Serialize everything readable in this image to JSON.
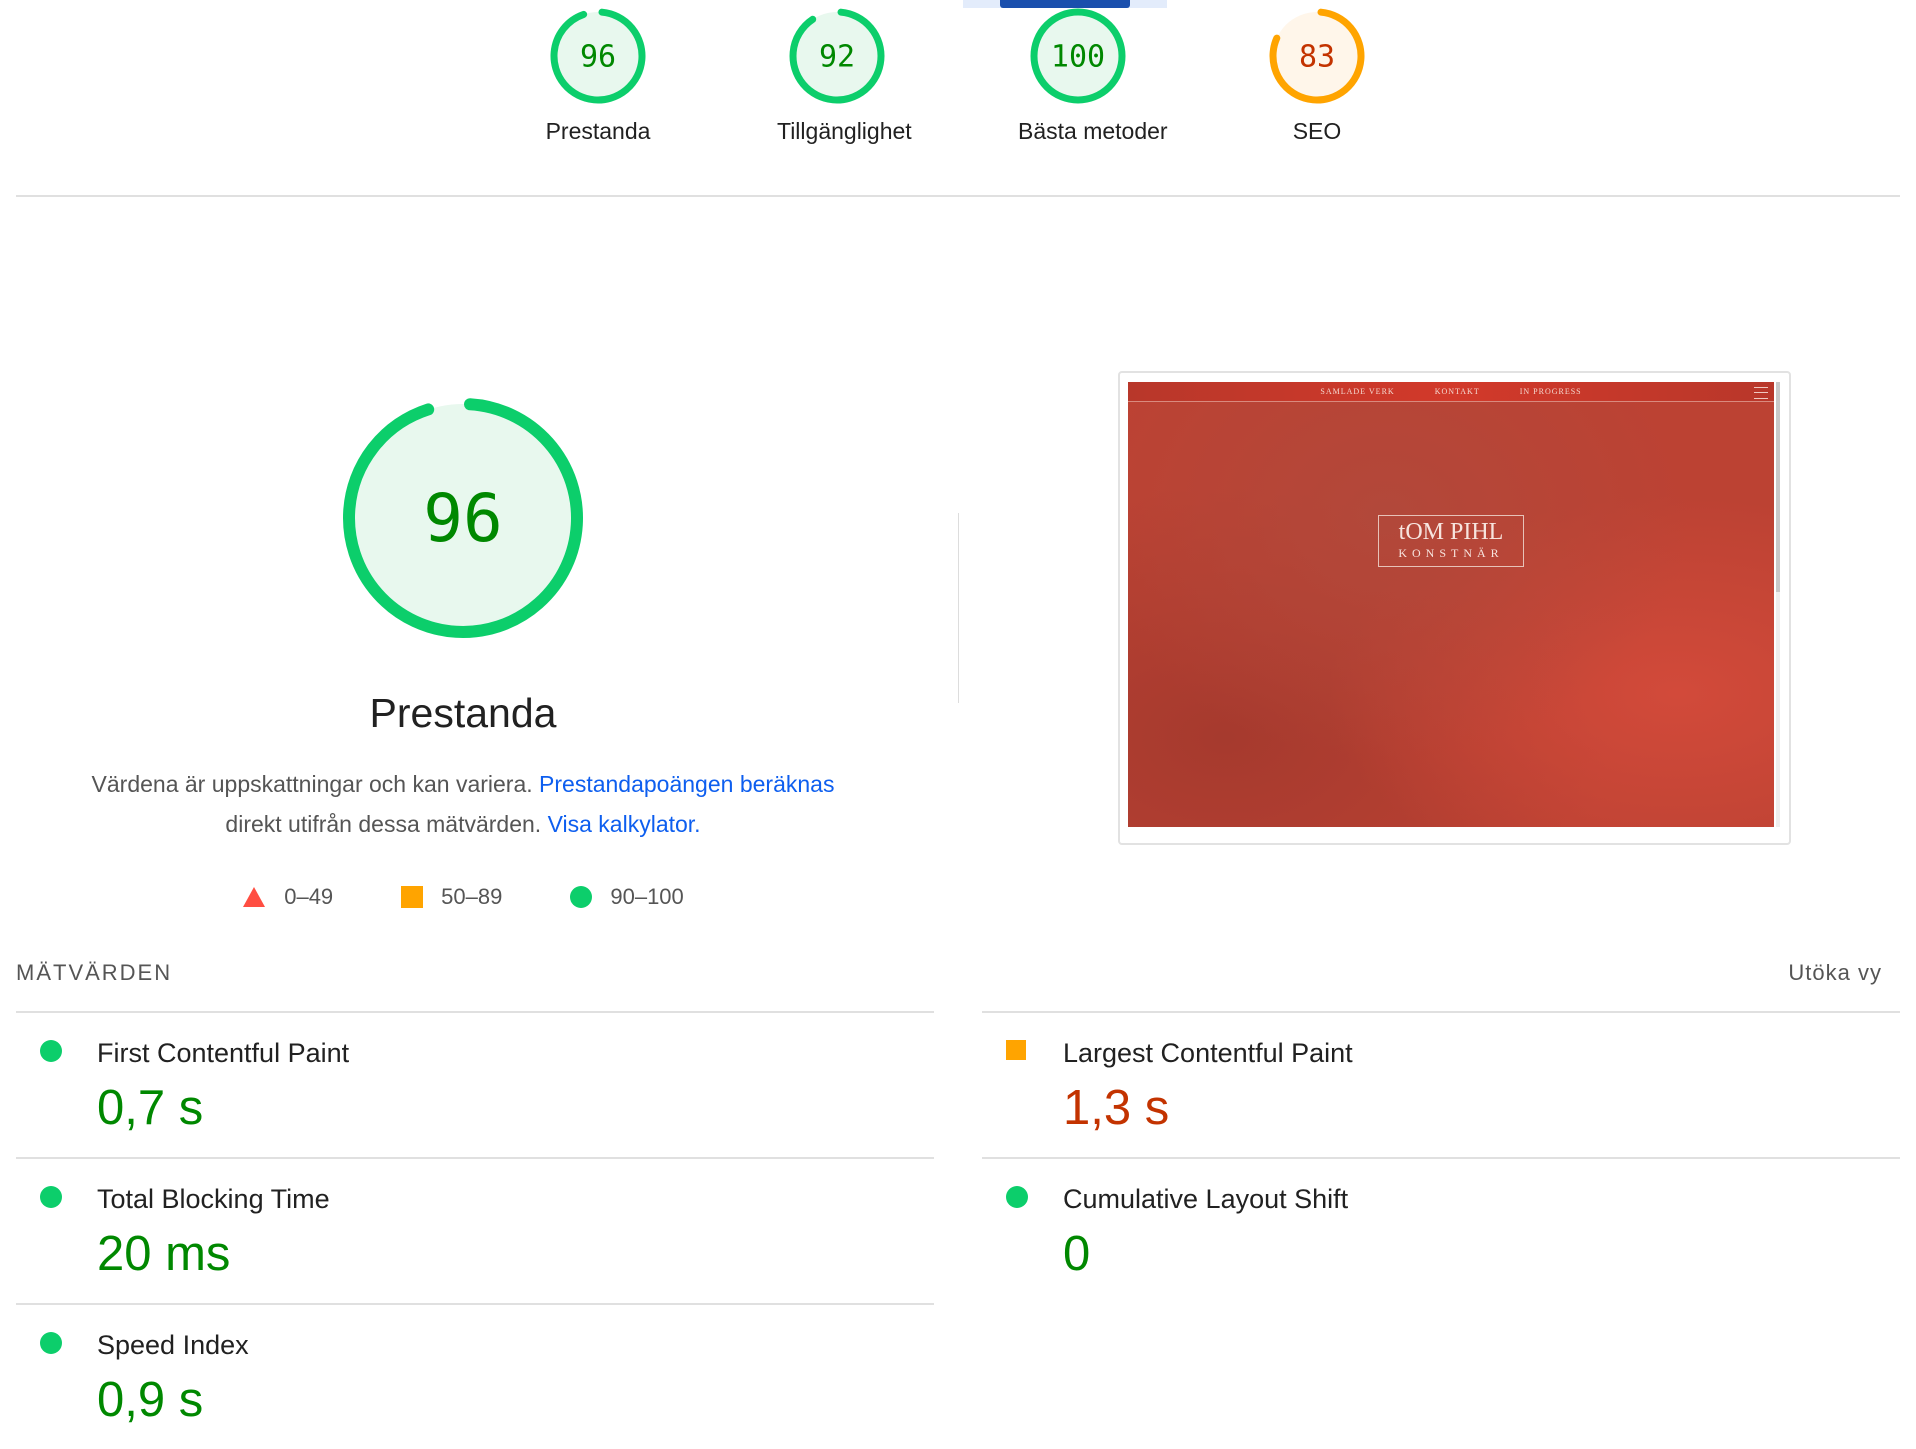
{
  "colors": {
    "pass": "#0cce6b",
    "pass_text": "#008800",
    "average": "#ffa400",
    "average_text": "#c33300",
    "fail": "#ff4e42",
    "link": "#0d5eef"
  },
  "categories": [
    {
      "score": 96,
      "label": "Prestanda",
      "rating": "pass"
    },
    {
      "score": 92,
      "label": "Tillgänglighet",
      "rating": "pass"
    },
    {
      "score": 100,
      "label": "Bästa metoder",
      "rating": "pass"
    },
    {
      "score": 83,
      "label": "SEO",
      "rating": "average"
    }
  ],
  "main": {
    "score": 96,
    "title": "Prestanda",
    "desc_text1": "Värdena är uppskattningar och kan variera. ",
    "desc_link1": "Prestandapoängen beräknas",
    "desc_text2": " direkt utifrån dessa mätvärden. ",
    "desc_link2": "Visa kalkylator.",
    "legend": [
      {
        "icon": "triangle-icon",
        "range": "0–49"
      },
      {
        "icon": "square-icon",
        "range": "50–89"
      },
      {
        "icon": "circle-icon",
        "range": "90–100"
      }
    ]
  },
  "screenshot": {
    "nav": [
      "SAMLADE VERK",
      "KONTAKT",
      "IN PROGRESS"
    ],
    "logo_name": "tOM PIHL",
    "logo_sub": "KONSTNÄR"
  },
  "metrics": {
    "section_title": "MÄTVÄRDEN",
    "expand_label": "Utöka vy",
    "items": [
      {
        "name": "First Contentful Paint",
        "value": "0,7 s",
        "rating": "pass"
      },
      {
        "name": "Largest Contentful Paint",
        "value": "1,3 s",
        "rating": "average"
      },
      {
        "name": "Total Blocking Time",
        "value": "20 ms",
        "rating": "pass"
      },
      {
        "name": "Cumulative Layout Shift",
        "value": "0",
        "rating": "pass"
      },
      {
        "name": "Speed Index",
        "value": "0,9 s",
        "rating": "pass"
      }
    ]
  }
}
